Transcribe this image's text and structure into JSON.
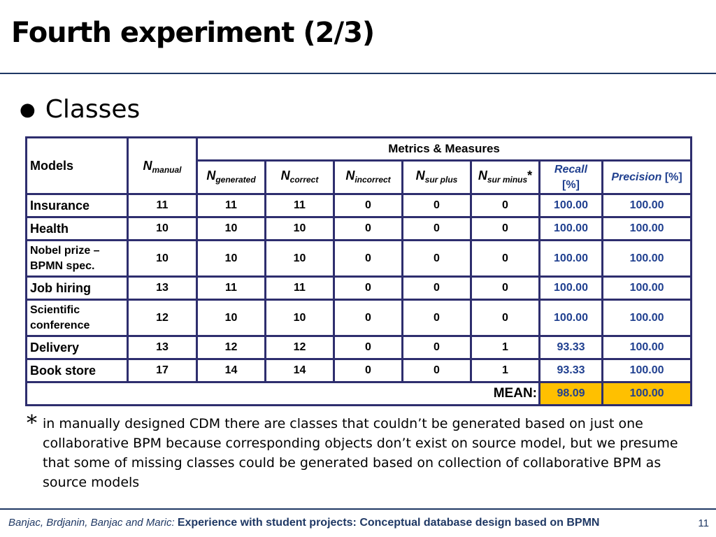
{
  "slide": {
    "title": "Fourth experiment (2/3)",
    "bullet": "Classes"
  },
  "table": {
    "headers": {
      "models": "Models",
      "metrics_measures": "Metrics & Measures",
      "n_manual": {
        "main": "N",
        "sub": "manual"
      },
      "n_generated": {
        "main": "N",
        "sub": "generated"
      },
      "n_correct": {
        "main": "N",
        "sub": "correct"
      },
      "n_incorrect": {
        "main": "N",
        "sub": "incorrect"
      },
      "n_sur_plus": {
        "main": "N",
        "sub": "sur plus"
      },
      "n_sur_minus": {
        "main": "N",
        "sub": "sur minus",
        "suffix": "*"
      },
      "recall": {
        "label": "Recall",
        "unit": "[%]"
      },
      "precision": {
        "label": "Precision",
        "unit": "[%]"
      }
    },
    "rows": [
      {
        "model": "Insurance",
        "n_manual": "11",
        "n_generated": "11",
        "n_correct": "11",
        "n_incorrect": "0",
        "n_sur_plus": "0",
        "n_sur_minus": "0",
        "recall": "100.00",
        "precision": "100.00"
      },
      {
        "model": "Health",
        "n_manual": "10",
        "n_generated": "10",
        "n_correct": "10",
        "n_incorrect": "0",
        "n_sur_plus": "0",
        "n_sur_minus": "0",
        "recall": "100.00",
        "precision": "100.00"
      },
      {
        "model_line1": "Nobel prize –",
        "model_line2": "BPMN  spec.",
        "n_manual": "10",
        "n_generated": "10",
        "n_correct": "10",
        "n_incorrect": "0",
        "n_sur_plus": "0",
        "n_sur_minus": "0",
        "recall": "100.00",
        "precision": "100.00"
      },
      {
        "model": "Job hiring",
        "n_manual": "13",
        "n_generated": "11",
        "n_correct": "11",
        "n_incorrect": "0",
        "n_sur_plus": "0",
        "n_sur_minus": "0",
        "recall": "100.00",
        "precision": "100.00"
      },
      {
        "model_line1": "Scientific",
        "model_line2": "conference",
        "n_manual": "12",
        "n_generated": "10",
        "n_correct": "10",
        "n_incorrect": "0",
        "n_sur_plus": "0",
        "n_sur_minus": "0",
        "recall": "100.00",
        "precision": "100.00"
      },
      {
        "model": "Delivery",
        "n_manual": "13",
        "n_generated": "12",
        "n_correct": "12",
        "n_incorrect": "0",
        "n_sur_plus": "0",
        "n_sur_minus": "1",
        "recall": "93.33",
        "precision": "100.00"
      },
      {
        "model": "Book store",
        "n_manual": "17",
        "n_generated": "14",
        "n_correct": "14",
        "n_incorrect": "0",
        "n_sur_plus": "0",
        "n_sur_minus": "1",
        "recall": "93.33",
        "precision": "100.00"
      }
    ],
    "mean": {
      "label": "MEAN:",
      "recall": "98.09",
      "precision": "100.00"
    }
  },
  "footnote": {
    "marker": "*",
    "text": "in manually designed CDM there are classes that couldn’t be generated based on just one collaborative BPM because corresponding objects don’t exist on source model, but we presume that some of missing classes could be generated based on collection of collaborative BPM as source models"
  },
  "footer": {
    "authors": "Banjac, Brdjanin, Banjac and Maric:",
    "project": "Experience with student projects: Conceptual database design based on BPMN",
    "page_number": "11"
  },
  "colors": {
    "table_border": "#2e2e6e",
    "metric_text": "#1f3f8f",
    "mean_highlight": "#ffc000",
    "rule": "#1f3864"
  }
}
